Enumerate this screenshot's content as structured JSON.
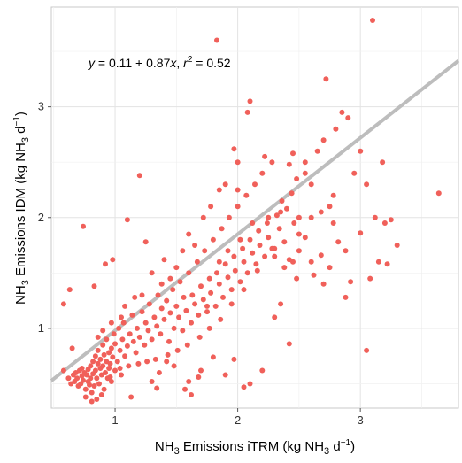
{
  "chart_data": {
    "type": "scatter",
    "title": "",
    "xlabel": {
      "main": "NH",
      "sub": "3",
      "rest": " Emissions iTRM (kg NH",
      "sub2": "3",
      "rest2": " d",
      "sup": "−1",
      "close": ")"
    },
    "ylabel": {
      "main": "NH",
      "sub": "3",
      "rest": " Emissions IDM (kg NH",
      "sub2": "3",
      "rest2": " d",
      "sup": "−1",
      "close": ")"
    },
    "xlim": [
      0.48,
      3.8
    ],
    "ylim": [
      0.28,
      3.9
    ],
    "xticks": [
      "1",
      "2",
      "3"
    ],
    "yticks": [
      "1",
      "2",
      "3"
    ],
    "grid": true,
    "point_color": "#f0605a",
    "line_color": "#bdbdbd",
    "annotation": {
      "y": "y",
      "eq": " = 0.11 + 0.87",
      "x": "x",
      "sep": ",  ",
      "r": "r",
      "sup": "2",
      "val": " = 0.52"
    },
    "regression": {
      "intercept": 0.11,
      "slope": 0.87,
      "r2": 0.52
    },
    "points": [
      [
        0.62,
        0.55
      ],
      [
        0.64,
        0.5
      ],
      [
        0.66,
        0.58
      ],
      [
        0.67,
        0.52
      ],
      [
        0.68,
        0.6
      ],
      [
        0.69,
        0.55
      ],
      [
        0.7,
        0.48
      ],
      [
        0.71,
        0.62
      ],
      [
        0.72,
        0.5
      ],
      [
        0.73,
        0.57
      ],
      [
        0.74,
        0.53
      ],
      [
        0.75,
        0.6
      ],
      [
        0.76,
        0.45
      ],
      [
        0.77,
        0.58
      ],
      [
        0.78,
        0.52
      ],
      [
        0.78,
        0.63
      ],
      [
        0.79,
        0.49
      ],
      [
        0.8,
        0.55
      ],
      [
        0.8,
        0.66
      ],
      [
        0.81,
        0.42
      ],
      [
        0.82,
        0.59
      ],
      [
        0.82,
        0.7
      ],
      [
        0.83,
        0.48
      ],
      [
        0.84,
        0.62
      ],
      [
        0.84,
        0.75
      ],
      [
        0.85,
        0.36
      ],
      [
        0.85,
        0.55
      ],
      [
        0.86,
        0.68
      ],
      [
        0.86,
        0.8
      ],
      [
        0.87,
        0.5
      ],
      [
        0.88,
        0.64
      ],
      [
        0.88,
        0.72
      ],
      [
        0.89,
        0.58
      ],
      [
        0.9,
        0.66
      ],
      [
        0.9,
        0.85
      ],
      [
        0.91,
        0.45
      ],
      [
        0.91,
        0.76
      ],
      [
        0.92,
        0.6
      ],
      [
        0.93,
        0.7
      ],
      [
        0.93,
        0.9
      ],
      [
        0.94,
        0.55
      ],
      [
        0.95,
        0.78
      ],
      [
        0.95,
        0.64
      ],
      [
        0.96,
        0.68
      ],
      [
        0.97,
        0.82
      ],
      [
        0.97,
        0.52
      ],
      [
        0.98,
        0.74
      ],
      [
        0.99,
        0.95
      ],
      [
        1.0,
        0.62
      ],
      [
        1.0,
        0.86
      ],
      [
        1.02,
        0.7
      ],
      [
        1.03,
        1.0
      ],
      [
        1.04,
        0.8
      ],
      [
        1.05,
        0.58
      ],
      [
        1.06,
        0.9
      ],
      [
        1.07,
        1.05
      ],
      [
        1.08,
        0.75
      ],
      [
        1.1,
        0.84
      ],
      [
        1.12,
        0.95
      ],
      [
        1.14,
        1.12
      ],
      [
        1.15,
        0.88
      ],
      [
        1.17,
        0.78
      ],
      [
        1.18,
        1.0
      ],
      [
        1.2,
        0.92
      ],
      [
        1.22,
        1.15
      ],
      [
        1.24,
        0.85
      ],
      [
        1.25,
        1.05
      ],
      [
        1.27,
        0.98
      ],
      [
        1.28,
        1.22
      ],
      [
        1.3,
        0.9
      ],
      [
        1.32,
        1.1
      ],
      [
        1.34,
        1.02
      ],
      [
        1.35,
        1.3
      ],
      [
        1.37,
        0.95
      ],
      [
        1.38,
        1.18
      ],
      [
        1.4,
        1.08
      ],
      [
        1.42,
        1.25
      ],
      [
        1.44,
        0.88
      ],
      [
        1.45,
        1.14
      ],
      [
        1.47,
        1.35
      ],
      [
        1.48,
        1.0
      ],
      [
        1.5,
        1.2
      ],
      [
        1.52,
        1.1
      ],
      [
        1.53,
        1.42
      ],
      [
        1.55,
        0.98
      ],
      [
        1.56,
        1.28
      ],
      [
        1.58,
        1.16
      ],
      [
        1.6,
        1.5
      ],
      [
        1.62,
        1.05
      ],
      [
        1.63,
        1.3
      ],
      [
        1.65,
        1.22
      ],
      [
        1.67,
        1.6
      ],
      [
        1.68,
        1.12
      ],
      [
        1.7,
        1.38
      ],
      [
        1.72,
        1.26
      ],
      [
        1.73,
        1.7
      ],
      [
        1.75,
        1.15
      ],
      [
        1.77,
        1.45
      ],
      [
        1.78,
        1.32
      ],
      [
        1.8,
        1.8
      ],
      [
        1.82,
        1.2
      ],
      [
        1.83,
        1.5
      ],
      [
        1.85,
        1.4
      ],
      [
        1.87,
        1.9
      ],
      [
        1.88,
        1.28
      ],
      [
        1.9,
        1.58
      ],
      [
        1.92,
        1.46
      ],
      [
        1.93,
        2.0
      ],
      [
        1.95,
        1.35
      ],
      [
        1.97,
        1.65
      ],
      [
        1.98,
        1.52
      ],
      [
        2.0,
        2.1
      ],
      [
        2.02,
        1.42
      ],
      [
        2.04,
        1.72
      ],
      [
        2.05,
        1.6
      ],
      [
        2.07,
        2.2
      ],
      [
        2.08,
        1.5
      ],
      [
        2.1,
        1.8
      ],
      [
        2.12,
        1.68
      ],
      [
        2.14,
        2.3
      ],
      [
        2.15,
        1.58
      ],
      [
        2.17,
        1.88
      ],
      [
        2.18,
        1.75
      ],
      [
        2.2,
        2.4
      ],
      [
        2.22,
        1.65
      ],
      [
        2.24,
        1.95
      ],
      [
        2.25,
        1.82
      ],
      [
        2.28,
        2.5
      ],
      [
        2.3,
        1.72
      ],
      [
        2.32,
        2.02
      ],
      [
        2.34,
        1.9
      ],
      [
        2.36,
        2.15
      ],
      [
        2.38,
        1.78
      ],
      [
        2.4,
        2.08
      ],
      [
        2.42,
        1.62
      ],
      [
        2.44,
        2.22
      ],
      [
        2.46,
        1.95
      ],
      [
        2.48,
        2.35
      ],
      [
        2.5,
        1.85
      ],
      [
        2.55,
        2.5
      ],
      [
        2.6,
        2.0
      ],
      [
        2.65,
        2.6
      ],
      [
        2.7,
        2.7
      ],
      [
        2.72,
        3.25
      ],
      [
        2.75,
        2.1
      ],
      [
        2.78,
        2.2
      ],
      [
        2.8,
        2.8
      ],
      [
        2.85,
        2.95
      ],
      [
        2.9,
        2.9
      ],
      [
        2.95,
        2.4
      ],
      [
        3.0,
        2.6
      ],
      [
        3.05,
        2.3
      ],
      [
        3.08,
        1.45
      ],
      [
        3.1,
        3.78
      ],
      [
        3.12,
        2.0
      ],
      [
        3.15,
        1.6
      ],
      [
        3.18,
        2.5
      ],
      [
        3.2,
        1.95
      ],
      [
        3.25,
        1.98
      ],
      [
        3.3,
        1.75
      ],
      [
        1.83,
        3.6
      ],
      [
        2.1,
        3.05
      ],
      [
        2.08,
        2.95
      ],
      [
        1.97,
        2.62
      ],
      [
        2.0,
        2.5
      ],
      [
        2.22,
        2.55
      ],
      [
        2.45,
        2.58
      ],
      [
        1.2,
        2.38
      ],
      [
        1.1,
        1.98
      ],
      [
        0.74,
        1.92
      ],
      [
        1.25,
        1.78
      ],
      [
        0.98,
        1.62
      ],
      [
        0.92,
        1.58
      ],
      [
        0.83,
        1.38
      ],
      [
        0.63,
        1.35
      ],
      [
        0.58,
        1.22
      ],
      [
        0.65,
        0.82
      ],
      [
        0.58,
        0.62
      ],
      [
        0.73,
        0.64
      ],
      [
        1.13,
        0.38
      ],
      [
        1.3,
        0.52
      ],
      [
        1.34,
        0.46
      ],
      [
        1.36,
        0.6
      ],
      [
        1.42,
        0.7
      ],
      [
        1.48,
        0.66
      ],
      [
        1.57,
        0.45
      ],
      [
        1.6,
        0.52
      ],
      [
        1.62,
        0.4
      ],
      [
        1.68,
        0.56
      ],
      [
        1.7,
        0.62
      ],
      [
        1.8,
        0.74
      ],
      [
        1.9,
        0.58
      ],
      [
        1.97,
        0.72
      ],
      [
        2.05,
        0.47
      ],
      [
        2.1,
        0.5
      ],
      [
        2.2,
        0.62
      ],
      [
        2.3,
        1.1
      ],
      [
        2.35,
        1.22
      ],
      [
        2.42,
        0.86
      ],
      [
        2.45,
        1.6
      ],
      [
        2.5,
        1.7
      ],
      [
        2.55,
        1.82
      ],
      [
        2.6,
        1.6
      ],
      [
        2.62,
        1.48
      ],
      [
        2.68,
        1.66
      ],
      [
        2.7,
        1.4
      ],
      [
        2.75,
        1.55
      ],
      [
        2.78,
        1.95
      ],
      [
        2.82,
        1.78
      ],
      [
        2.88,
        1.28
      ],
      [
        2.92,
        1.42
      ],
      [
        3.0,
        1.86
      ],
      [
        3.05,
        0.8
      ],
      [
        3.22,
        1.58
      ],
      [
        3.64,
        2.22
      ],
      [
        2.88,
        1.7
      ],
      [
        2.6,
        2.3
      ],
      [
        2.55,
        2.4
      ],
      [
        2.42,
        2.48
      ],
      [
        2.35,
        2.05
      ],
      [
        2.28,
        1.72
      ],
      [
        2.16,
        1.52
      ],
      [
        2.05,
        1.35
      ],
      [
        1.95,
        1.22
      ],
      [
        1.86,
        1.08
      ],
      [
        1.77,
        1.0
      ],
      [
        1.69,
        0.92
      ],
      [
        1.59,
        0.85
      ],
      [
        1.51,
        0.8
      ],
      [
        1.43,
        0.76
      ],
      [
        1.33,
        0.72
      ],
      [
        1.26,
        0.7
      ],
      [
        1.19,
        0.68
      ],
      [
        1.11,
        0.66
      ],
      [
        1.04,
        0.64
      ],
      [
        0.96,
        0.56
      ],
      [
        0.89,
        0.4
      ],
      [
        0.81,
        0.34
      ],
      [
        0.76,
        0.38
      ],
      [
        1.08,
        1.2
      ],
      [
        1.16,
        1.28
      ],
      [
        1.3,
        1.5
      ],
      [
        1.4,
        1.62
      ],
      [
        1.5,
        1.55
      ],
      [
        1.55,
        1.7
      ],
      [
        1.65,
        1.75
      ],
      [
        1.72,
        2.0
      ],
      [
        1.78,
        2.1
      ],
      [
        1.85,
        2.25
      ],
      [
        1.9,
        2.3
      ],
      [
        2.0,
        2.25
      ],
      [
        1.6,
        1.85
      ],
      [
        1.45,
        1.45
      ],
      [
        1.38,
        1.4
      ],
      [
        1.22,
        1.3
      ],
      [
        1.05,
        1.1
      ],
      [
        0.97,
        1.05
      ],
      [
        0.9,
        0.98
      ],
      [
        0.86,
        0.92
      ],
      [
        1.75,
        1.2
      ],
      [
        1.85,
        1.6
      ],
      [
        1.92,
        1.7
      ],
      [
        2.02,
        1.8
      ],
      [
        2.12,
        1.95
      ],
      [
        2.25,
        2.0
      ],
      [
        2.3,
        1.65
      ],
      [
        2.38,
        1.55
      ],
      [
        2.48,
        1.45
      ],
      [
        2.5,
        2.0
      ],
      [
        2.68,
        2.05
      ]
    ]
  }
}
